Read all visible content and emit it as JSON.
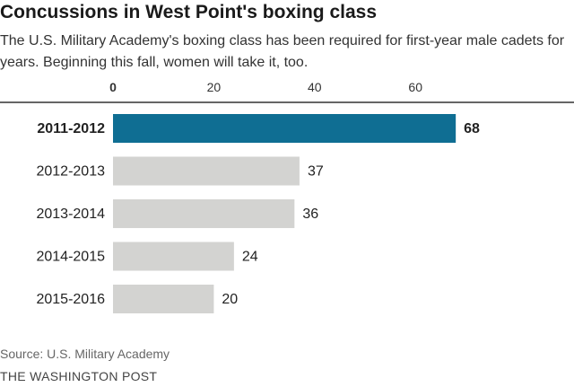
{
  "header": {
    "title": "Concussions in West Point's boxing class",
    "subtitle": "The U.S. Military Academy's boxing class has been required for first-year male cadets for years. Beginning this fall, women will take it, too."
  },
  "footer": {
    "source": "Source: U.S. Military Academy",
    "credit": "THE WASHINGTON POST"
  },
  "colors": {
    "highlight": "#0f6e93",
    "bar": "#d3d3d1",
    "axis": "#333333"
  },
  "chart_data": {
    "type": "bar",
    "orientation": "horizontal",
    "categories": [
      "2011-2012",
      "2012-2013",
      "2013-2014",
      "2014-2015",
      "2015-2016"
    ],
    "values": [
      68,
      37,
      36,
      24,
      20
    ],
    "highlight_index": 0,
    "xticks": [
      0,
      20,
      40,
      60
    ],
    "xlim": [
      0,
      70
    ],
    "grid": false
  }
}
